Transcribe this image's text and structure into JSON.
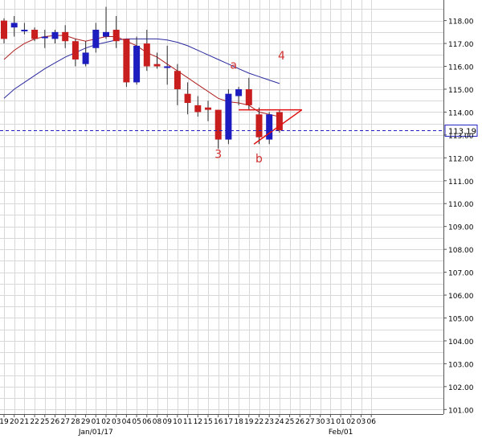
{
  "chart_data": {
    "type": "candlestick",
    "ylim": [
      100.8,
      118.9
    ],
    "grid": true,
    "y_ticks": [
      "101.00",
      "102.00",
      "103.00",
      "104.00",
      "105.00",
      "106.00",
      "107.00",
      "108.00",
      "109.00",
      "110.00",
      "111.00",
      "112.00",
      "113.00",
      "114.00",
      "115.00",
      "116.00",
      "117.00",
      "118.00"
    ],
    "y_tick_values": [
      101,
      102,
      103,
      104,
      105,
      106,
      107,
      108,
      109,
      110,
      111,
      112,
      113,
      114,
      115,
      116,
      117,
      118
    ],
    "x_ticks": [
      "19",
      "20",
      "21",
      "22",
      "25",
      "26",
      "27",
      "28",
      "29",
      "01",
      "02",
      "03",
      "04",
      "05",
      "06",
      "08",
      "09",
      "10",
      "11",
      "12",
      "15",
      "16",
      "17",
      "18",
      "19",
      "22",
      "23",
      "24",
      "25",
      "26",
      "27",
      "30",
      "31",
      "01",
      "02",
      "03",
      "06"
    ],
    "date_labels": [
      {
        "text": "Jan/01/17",
        "tick": 9
      },
      {
        "text": "Feb/01",
        "tick": 33
      }
    ],
    "current_price": 113.19,
    "current_price_label": "113.19",
    "candles": [
      {
        "date": "19",
        "o": 118.0,
        "h": 118.1,
        "l": 117.0,
        "c": 117.2
      },
      {
        "date": "20",
        "o": 117.7,
        "h": 118.2,
        "l": 117.3,
        "c": 117.9
      },
      {
        "date": "21",
        "o": 117.6,
        "h": 117.9,
        "l": 117.4,
        "c": 117.6
      },
      {
        "date": "22",
        "o": 117.6,
        "h": 117.7,
        "l": 117.1,
        "c": 117.2
      },
      {
        "date": "25",
        "o": 117.3,
        "h": 117.6,
        "l": 116.8,
        "c": 117.3
      },
      {
        "date": "26",
        "o": 117.2,
        "h": 117.6,
        "l": 117.0,
        "c": 117.5
      },
      {
        "date": "27",
        "o": 117.5,
        "h": 117.8,
        "l": 116.8,
        "c": 117.1
      },
      {
        "date": "28",
        "o": 117.1,
        "h": 117.2,
        "l": 116.0,
        "c": 116.3
      },
      {
        "date": "29",
        "o": 116.1,
        "h": 117.1,
        "l": 116.0,
        "c": 116.6
      },
      {
        "date": "01",
        "o": 116.8,
        "h": 117.9,
        "l": 116.6,
        "c": 117.6
      },
      {
        "date": "02",
        "o": 117.3,
        "h": 118.6,
        "l": 117.2,
        "c": 117.5
      },
      {
        "date": "03",
        "o": 117.6,
        "h": 118.2,
        "l": 116.8,
        "c": 117.1
      },
      {
        "date": "04",
        "o": 117.2,
        "h": 117.2,
        "l": 115.1,
        "c": 115.3
      },
      {
        "date": "05",
        "o": 115.3,
        "h": 117.3,
        "l": 115.2,
        "c": 116.9
      },
      {
        "date": "06",
        "o": 117.0,
        "h": 117.6,
        "l": 115.8,
        "c": 116.0
      },
      {
        "date": "08",
        "o": 116.1,
        "h": 116.6,
        "l": 115.9,
        "c": 116.0
      },
      {
        "date": "09",
        "o": 116.0,
        "h": 116.9,
        "l": 115.2,
        "c": 116.0
      },
      {
        "date": "10",
        "o": 115.8,
        "h": 116.1,
        "l": 114.3,
        "c": 115.0
      },
      {
        "date": "11",
        "o": 114.8,
        "h": 115.3,
        "l": 113.9,
        "c": 114.4
      },
      {
        "date": "12",
        "o": 114.3,
        "h": 114.7,
        "l": 113.8,
        "c": 114.0
      },
      {
        "date": "15",
        "o": 114.2,
        "h": 114.5,
        "l": 113.6,
        "c": 114.1
      },
      {
        "date": "16",
        "o": 114.1,
        "h": 114.1,
        "l": 112.4,
        "c": 112.8
      },
      {
        "date": "17",
        "o": 112.8,
        "h": 115.0,
        "l": 112.6,
        "c": 114.8
      },
      {
        "date": "18",
        "o": 114.7,
        "h": 115.1,
        "l": 114.3,
        "c": 115.0
      },
      {
        "date": "19",
        "o": 115.0,
        "h": 115.5,
        "l": 114.1,
        "c": 114.3
      },
      {
        "date": "22",
        "o": 113.9,
        "h": 114.2,
        "l": 112.6,
        "c": 112.9
      },
      {
        "date": "23",
        "o": 112.8,
        "h": 114.0,
        "l": 112.6,
        "c": 113.9
      },
      {
        "date": "24",
        "o": 114.0,
        "h": 114.1,
        "l": 113.1,
        "c": 113.2
      }
    ],
    "ma_red": [
      [
        0,
        116.3
      ],
      [
        1,
        116.7
      ],
      [
        2,
        117.0
      ],
      [
        3,
        117.2
      ],
      [
        4,
        117.3
      ],
      [
        5,
        117.35
      ],
      [
        6,
        117.35
      ],
      [
        7,
        117.2
      ],
      [
        8,
        117.1
      ],
      [
        9,
        117.2
      ],
      [
        10,
        117.3
      ],
      [
        11,
        117.3
      ],
      [
        12,
        117.1
      ],
      [
        13,
        116.9
      ],
      [
        14,
        116.6
      ],
      [
        15,
        116.4
      ],
      [
        16,
        116.1
      ],
      [
        17,
        115.8
      ],
      [
        18,
        115.5
      ],
      [
        19,
        115.2
      ],
      [
        20,
        114.9
      ],
      [
        21,
        114.6
      ],
      [
        22,
        114.45
      ],
      [
        23,
        114.4
      ],
      [
        24,
        114.3
      ],
      [
        25,
        114.0
      ],
      [
        26,
        113.9
      ],
      [
        27,
        113.8
      ]
    ],
    "ma_blue": [
      [
        0,
        114.6
      ],
      [
        1,
        115.0
      ],
      [
        2,
        115.3
      ],
      [
        3,
        115.6
      ],
      [
        4,
        115.9
      ],
      [
        5,
        116.15
      ],
      [
        6,
        116.4
      ],
      [
        7,
        116.6
      ],
      [
        8,
        116.8
      ],
      [
        9,
        116.95
      ],
      [
        10,
        117.05
      ],
      [
        11,
        117.15
      ],
      [
        12,
        117.2
      ],
      [
        13,
        117.2
      ],
      [
        14,
        117.2
      ],
      [
        15,
        117.2
      ],
      [
        16,
        117.15
      ],
      [
        17,
        117.05
      ],
      [
        18,
        116.9
      ],
      [
        19,
        116.7
      ],
      [
        20,
        116.5
      ],
      [
        21,
        116.3
      ],
      [
        22,
        116.1
      ],
      [
        23,
        115.9
      ],
      [
        24,
        115.7
      ],
      [
        25,
        115.55
      ],
      [
        26,
        115.4
      ],
      [
        27,
        115.25
      ]
    ],
    "trendlines": [
      {
        "from": [
          23,
          114.1
        ],
        "to": [
          29.2,
          114.1
        ]
      },
      {
        "from": [
          24.5,
          112.6
        ],
        "to": [
          29.2,
          114.1
        ]
      }
    ],
    "annotations": [
      {
        "text": "a",
        "x": 22.5,
        "y": 115.9
      },
      {
        "text": "4",
        "x": 27.2,
        "y": 116.3
      },
      {
        "text": "3",
        "x": 21.0,
        "y": 112.0
      },
      {
        "text": "b",
        "x": 25.0,
        "y": 111.8
      }
    ],
    "colors": {
      "bull": "#1c1cbf",
      "bear": "#c81e1e",
      "ma_red": "#b02020",
      "ma_blue": "#2a2aa0",
      "trend": "#e01010",
      "price_line": "#2020c0",
      "grid": "#d8d8d8"
    }
  }
}
